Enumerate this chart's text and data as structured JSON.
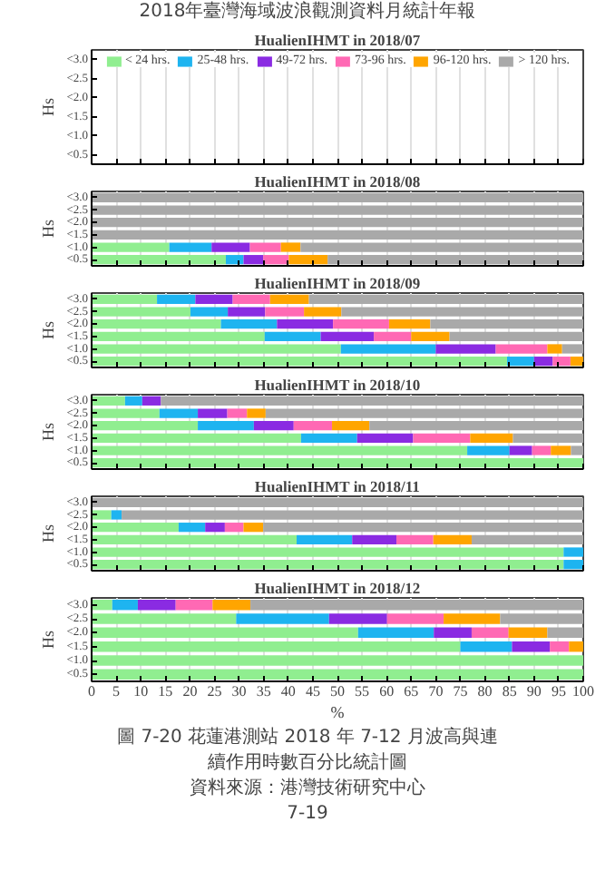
{
  "chart_data": [
    {
      "type": "bar",
      "orientation": "horizontal",
      "stacked": true,
      "title": "HualienIHMT in 2018/07",
      "ylabel": "Hs",
      "annotations": [
        "2018年臺灣海域波浪觀測資料月統計年報"
      ],
      "categories": [
        "<3.0",
        "<2.5",
        "<2.0",
        "<1.5",
        "<1.0",
        "<0.5"
      ],
      "xlim": [
        0,
        100
      ],
      "xticks": [
        0,
        5,
        10,
        15,
        20,
        25,
        30,
        35,
        40,
        45,
        50,
        55,
        60,
        65,
        70,
        75,
        80,
        85,
        90,
        95,
        100
      ],
      "tick_labels": "y",
      "grid": "x",
      "legend": "top",
      "series": [
        {
          "name": "< 24 hrs.",
          "color": "#90ee90",
          "values": [
            null,
            null,
            null,
            null,
            null,
            null
          ]
        },
        {
          "name": "25-48 hrs.",
          "color": "#1eb4f0",
          "values": [
            null,
            null,
            null,
            null,
            null,
            null
          ]
        },
        {
          "name": "49-72 hrs.",
          "color": "#8a2be2",
          "values": [
            null,
            null,
            null,
            null,
            null,
            null
          ]
        },
        {
          "name": "73-96 hrs.",
          "color": "#ff69b4",
          "values": [
            null,
            null,
            null,
            null,
            null,
            null
          ]
        },
        {
          "name": "96-120 hrs.",
          "color": "#ffa500",
          "values": [
            null,
            null,
            null,
            null,
            null,
            null
          ]
        },
        {
          "name": "> 120 hrs.",
          "color": "#a9a9a9",
          "values": [
            null,
            null,
            null,
            null,
            null,
            null
          ]
        }
      ]
    },
    {
      "type": "bar",
      "orientation": "horizontal",
      "stacked": true,
      "title": "HualienIHMT in 2018/08",
      "ylabel": "Hs",
      "categories": [
        "<3.0",
        "<2.5",
        "<2.0",
        "<1.5",
        "<1.0",
        "<0.5"
      ],
      "xlim": [
        0,
        100
      ],
      "xticks": [
        0,
        5,
        10,
        15,
        20,
        25,
        30,
        35,
        40,
        45,
        50,
        55,
        60,
        65,
        70,
        75,
        80,
        85,
        90,
        95,
        100
      ],
      "tick_labels": "y",
      "grid": "x",
      "series": [
        {
          "color": "#90ee90",
          "values": [
            null,
            null,
            null,
            null,
            15.8,
            27.3
          ]
        },
        {
          "color": "#1eb4f0",
          "values": [
            null,
            null,
            null,
            null,
            8.6,
            3.6
          ]
        },
        {
          "color": "#8a2be2",
          "values": [
            null,
            null,
            null,
            null,
            7.8,
            4.0
          ]
        },
        {
          "color": "#ff69b4",
          "values": [
            null,
            null,
            null,
            null,
            6.3,
            5.2
          ]
        },
        {
          "color": "#ffa500",
          "values": [
            null,
            null,
            null,
            null,
            4.0,
            7.9
          ]
        },
        {
          "color": "#a9a9a9",
          "values": [
            100,
            100,
            100,
            100,
            57.5,
            52.0
          ]
        }
      ]
    },
    {
      "type": "bar",
      "orientation": "horizontal",
      "stacked": true,
      "title": "HualienIHMT in 2018/09",
      "ylabel": "Hs",
      "categories": [
        "<3.0",
        "<2.5",
        "<2.0",
        "<1.5",
        "<1.0",
        "<0.5"
      ],
      "xlim": [
        0,
        100
      ],
      "xticks": [
        0,
        5,
        10,
        15,
        20,
        25,
        30,
        35,
        40,
        45,
        50,
        55,
        60,
        65,
        70,
        75,
        80,
        85,
        90,
        95,
        100
      ],
      "tick_labels": "y",
      "grid": "x",
      "series": [
        {
          "color": "#90ee90",
          "values": [
            13.3,
            20.1,
            26.3,
            35.2,
            50.7,
            84.5
          ]
        },
        {
          "color": "#1eb4f0",
          "values": [
            7.8,
            7.6,
            11.4,
            11.4,
            19.3,
            5.5
          ]
        },
        {
          "color": "#8a2be2",
          "values": [
            7.6,
            7.6,
            11.4,
            10.8,
            12.2,
            3.8
          ]
        },
        {
          "color": "#ff69b4",
          "values": [
            7.6,
            7.9,
            11.4,
            7.6,
            10.5,
            3.6
          ]
        },
        {
          "color": "#ffa500",
          "values": [
            7.9,
            7.6,
            8.4,
            7.8,
            3.0,
            2.6
          ]
        },
        {
          "color": "#a9a9a9",
          "values": [
            55.8,
            49.2,
            31.1,
            27.2,
            4.3,
            null
          ]
        }
      ]
    },
    {
      "type": "bar",
      "orientation": "horizontal",
      "stacked": true,
      "title": "HualienIHMT in 2018/10",
      "ylabel": "Hs",
      "categories": [
        "<3.0",
        "<2.5",
        "<2.0",
        "<1.5",
        "<1.0",
        "<0.5"
      ],
      "xlim": [
        0,
        100
      ],
      "xticks": [
        0,
        5,
        10,
        15,
        20,
        25,
        30,
        35,
        40,
        45,
        50,
        55,
        60,
        65,
        70,
        75,
        80,
        85,
        90,
        95,
        100
      ],
      "tick_labels": "y",
      "grid": "x",
      "series": [
        {
          "color": "#90ee90",
          "values": [
            6.8,
            13.8,
            21.6,
            42.6,
            76.4,
            100
          ]
        },
        {
          "color": "#1eb4f0",
          "values": [
            3.5,
            7.8,
            11.4,
            11.4,
            8.6,
            null
          ]
        },
        {
          "color": "#8a2be2",
          "values": [
            3.8,
            6.0,
            8.1,
            11.4,
            4.6,
            null
          ]
        },
        {
          "color": "#ff69b4",
          "values": [
            null,
            4.0,
            7.8,
            11.6,
            3.8,
            null
          ]
        },
        {
          "color": "#ffa500",
          "values": [
            null,
            3.8,
            7.6,
            8.7,
            4.1,
            null
          ]
        },
        {
          "color": "#a9a9a9",
          "values": [
            85.9,
            64.6,
            43.5,
            14.3,
            2.5,
            null
          ]
        }
      ]
    },
    {
      "type": "bar",
      "orientation": "horizontal",
      "stacked": true,
      "title": "HualienIHMT in 2018/11",
      "ylabel": "Hs",
      "categories": [
        "<3.0",
        "<2.5",
        "<2.0",
        "<1.5",
        "<1.0",
        "<0.5"
      ],
      "xlim": [
        0,
        100
      ],
      "xticks": [
        0,
        5,
        10,
        15,
        20,
        25,
        30,
        35,
        40,
        45,
        50,
        55,
        60,
        65,
        70,
        75,
        80,
        85,
        90,
        95,
        100
      ],
      "tick_labels": "y",
      "grid": "x",
      "series": [
        {
          "color": "#90ee90",
          "values": [
            null,
            4.0,
            17.7,
            41.7,
            96.0,
            96.0
          ]
        },
        {
          "color": "#1eb4f0",
          "values": [
            null,
            2.1,
            5.4,
            11.3,
            4.0,
            4.0
          ]
        },
        {
          "color": "#8a2be2",
          "values": [
            null,
            null,
            4.0,
            9.0,
            null,
            null
          ]
        },
        {
          "color": "#ff69b4",
          "values": [
            null,
            null,
            3.8,
            7.5,
            null,
            null
          ]
        },
        {
          "color": "#ffa500",
          "values": [
            null,
            null,
            4.0,
            7.8,
            null,
            null
          ]
        },
        {
          "color": "#a9a9a9",
          "values": [
            100,
            93.9,
            65.1,
            22.7,
            null,
            null
          ]
        }
      ]
    },
    {
      "type": "bar",
      "orientation": "horizontal",
      "stacked": true,
      "title": "HualienIHMT in 2018/12",
      "ylabel": "Hs",
      "xlabel": "%",
      "annotations": [
        "圖 7-20 花蓮港測站 2018 年 7-12 月波高與連續作用時數百分比統計圖",
        "資料來源：港灣技術研究中心",
        "7-19"
      ],
      "categories": [
        "<3.0",
        "<2.5",
        "<2.0",
        "<1.5",
        "<1.0",
        "<0.5"
      ],
      "xlim": [
        0,
        100
      ],
      "xticks": [
        0,
        5,
        10,
        15,
        20,
        25,
        30,
        35,
        40,
        45,
        50,
        55,
        60,
        65,
        70,
        75,
        80,
        85,
        90,
        95,
        100
      ],
      "grid": "x",
      "series": [
        {
          "color": "#90ee90",
          "values": [
            4.2,
            29.4,
            54.2,
            75.0,
            100,
            100
          ]
        },
        {
          "color": "#1eb4f0",
          "values": [
            5.2,
            18.9,
            15.4,
            10.5,
            null,
            null
          ]
        },
        {
          "color": "#8a2be2",
          "values": [
            7.7,
            11.8,
            7.7,
            7.7,
            null,
            null
          ]
        },
        {
          "color": "#ff69b4",
          "values": [
            7.5,
            11.5,
            7.5,
            3.9,
            null,
            null
          ]
        },
        {
          "color": "#ffa500",
          "values": [
            7.7,
            11.5,
            7.9,
            2.9,
            null,
            null
          ]
        },
        {
          "color": "#a9a9a9",
          "values": [
            67.7,
            16.9,
            7.3,
            null,
            null,
            null
          ]
        }
      ]
    }
  ]
}
